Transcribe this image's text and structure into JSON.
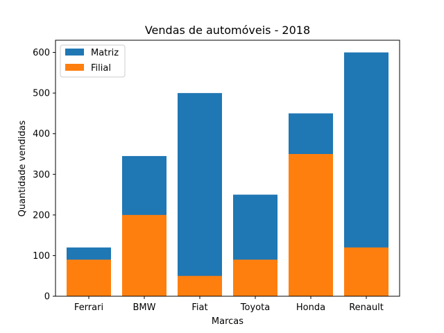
{
  "chart_data": {
    "type": "bar",
    "stacked": "overlay",
    "title": "Vendas de automóveis - 2018",
    "xlabel": "Marcas",
    "ylabel": "Quantidade vendidas",
    "categories": [
      "Ferrari",
      "BMW",
      "Fiat",
      "Toyota",
      "Honda",
      "Renault"
    ],
    "series": [
      {
        "name": "Matriz",
        "values": [
          120,
          345,
          500,
          250,
          450,
          600
        ],
        "color": "#1f77b4"
      },
      {
        "name": "Filial",
        "values": [
          90,
          200,
          50,
          90,
          350,
          120
        ],
        "color": "#ff7f0e"
      }
    ],
    "ylim": [
      0,
      630
    ],
    "yticks": [
      0,
      100,
      200,
      300,
      400,
      500,
      600
    ],
    "grid": false,
    "legend": "top-left"
  }
}
